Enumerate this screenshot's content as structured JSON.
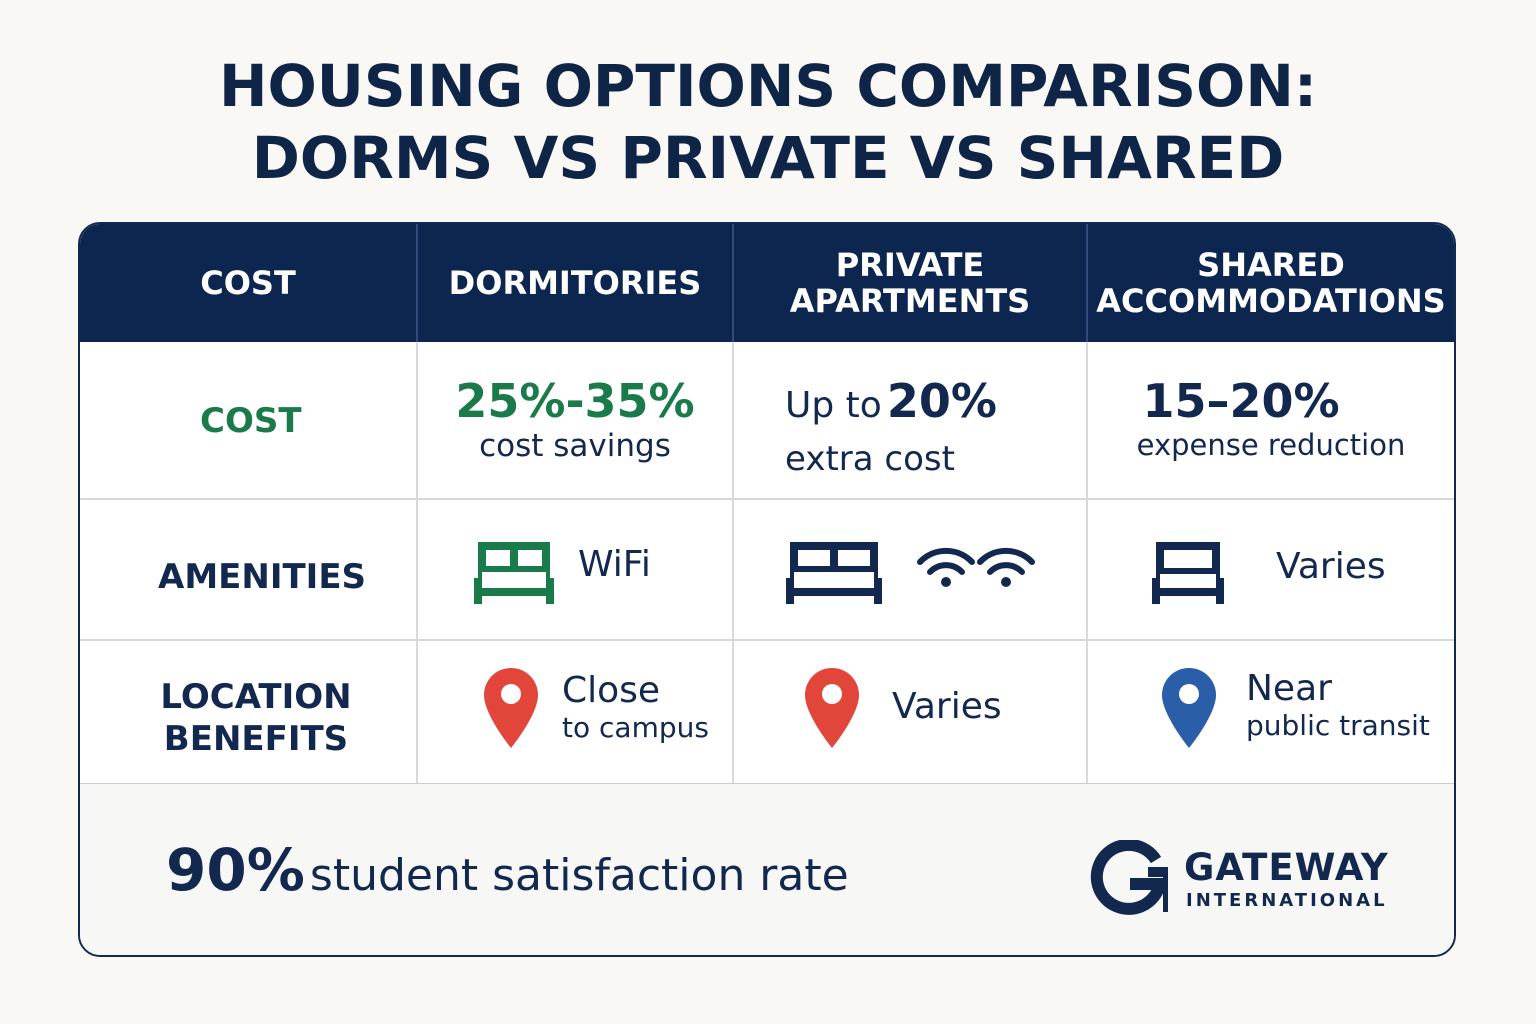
{
  "header": {
    "title": [
      "HOUSING OPTIONS COMPARISON:",
      "DORMS VS PRIVATE VS SHARED"
    ]
  },
  "table": {
    "columns": [
      [
        "COST"
      ],
      [
        "DORMITORIES"
      ],
      [
        "PRIVATE",
        "APARTMENTS"
      ],
      [
        "SHARED",
        "ACCOMMODATIONS"
      ]
    ],
    "cost": {
      "label": "COST",
      "dormitories": {
        "main": "25%-35%",
        "sub": "cost savings"
      },
      "private": {
        "lead": "Up to",
        "main": "20%",
        "sub": "extra cost"
      },
      "shared": {
        "main": "15–20%",
        "sub": "expense reduction"
      }
    },
    "amenities": {
      "label": "AMENITIES",
      "dormitories": "WiFi",
      "shared": "Varies"
    },
    "location": {
      "label": [
        "LOCATION",
        "BENEFITS"
      ],
      "dormitories": {
        "main": "Close",
        "sub": "to campus"
      },
      "private": {
        "main": "Varies"
      },
      "shared": {
        "main": "Near",
        "sub": "public transit"
      }
    }
  },
  "footer": {
    "stat": "90%",
    "text": "student satisfaction rate"
  },
  "logo": {
    "name": "GATEWAY",
    "sub": "INTERNATIONAL"
  }
}
